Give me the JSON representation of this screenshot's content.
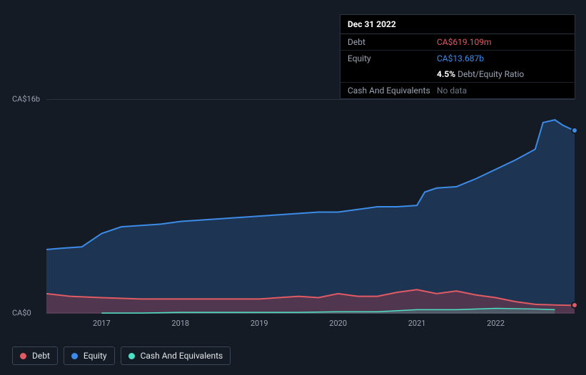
{
  "tooltip": {
    "date": "Dec 31 2022",
    "rows": [
      {
        "label": "Debt",
        "value": "CA$619.109m",
        "color": "red"
      },
      {
        "label": "Equity",
        "value": "CA$13.687b",
        "color": "blue"
      }
    ],
    "ratio": {
      "pct": "4.5%",
      "label": "Debt/Equity Ratio"
    },
    "cash": {
      "label": "Cash And Equivalents",
      "value": "No data"
    }
  },
  "chart": {
    "type": "area",
    "background_color": "#151b24",
    "grid_color": "#2a3340",
    "text_color": "#9aa4b2",
    "label_fontsize": 11,
    "y_axis": {
      "min": 0,
      "max": 16,
      "unit_prefix": "CA$",
      "unit_suffix": "b",
      "ticks": [
        {
          "value": 0,
          "label": "CA$0"
        },
        {
          "value": 16,
          "label": "CA$16b"
        }
      ]
    },
    "x_axis": {
      "min": 2016.3,
      "max": 2023.0,
      "ticks": [
        2017,
        2018,
        2019,
        2020,
        2021,
        2022
      ]
    },
    "series": [
      {
        "name": "Equity",
        "color": "#3c8ce7",
        "fill": "rgba(45,100,170,0.35)",
        "line_width": 2,
        "points": [
          [
            2016.3,
            4.8
          ],
          [
            2016.5,
            4.9
          ],
          [
            2016.75,
            5.0
          ],
          [
            2017.0,
            6.0
          ],
          [
            2017.25,
            6.5
          ],
          [
            2017.5,
            6.6
          ],
          [
            2017.75,
            6.7
          ],
          [
            2018.0,
            6.9
          ],
          [
            2018.25,
            7.0
          ],
          [
            2018.5,
            7.1
          ],
          [
            2018.75,
            7.2
          ],
          [
            2019.0,
            7.3
          ],
          [
            2019.25,
            7.4
          ],
          [
            2019.5,
            7.5
          ],
          [
            2019.75,
            7.6
          ],
          [
            2020.0,
            7.6
          ],
          [
            2020.25,
            7.8
          ],
          [
            2020.5,
            8.0
          ],
          [
            2020.75,
            8.0
          ],
          [
            2021.0,
            8.1
          ],
          [
            2021.1,
            9.1
          ],
          [
            2021.25,
            9.4
          ],
          [
            2021.5,
            9.5
          ],
          [
            2021.75,
            10.1
          ],
          [
            2022.0,
            10.8
          ],
          [
            2022.25,
            11.5
          ],
          [
            2022.5,
            12.3
          ],
          [
            2022.6,
            14.3
          ],
          [
            2022.75,
            14.5
          ],
          [
            2022.85,
            14.1
          ],
          [
            2023.0,
            13.687
          ]
        ]
      },
      {
        "name": "Debt",
        "color": "#e15b64",
        "fill": "rgba(200,60,70,0.3)",
        "line_width": 2,
        "points": [
          [
            2016.3,
            1.5
          ],
          [
            2016.6,
            1.3
          ],
          [
            2017.0,
            1.2
          ],
          [
            2017.5,
            1.1
          ],
          [
            2018.0,
            1.1
          ],
          [
            2018.5,
            1.1
          ],
          [
            2019.0,
            1.1
          ],
          [
            2019.5,
            1.3
          ],
          [
            2019.75,
            1.2
          ],
          [
            2020.0,
            1.5
          ],
          [
            2020.25,
            1.3
          ],
          [
            2020.5,
            1.3
          ],
          [
            2020.75,
            1.6
          ],
          [
            2021.0,
            1.8
          ],
          [
            2021.25,
            1.5
          ],
          [
            2021.5,
            1.7
          ],
          [
            2021.75,
            1.4
          ],
          [
            2022.0,
            1.2
          ],
          [
            2022.25,
            0.9
          ],
          [
            2022.5,
            0.7
          ],
          [
            2022.75,
            0.65
          ],
          [
            2023.0,
            0.619
          ]
        ]
      },
      {
        "name": "Cash And Equivalents",
        "color": "#4de0c4",
        "fill": "rgba(77,224,196,0.2)",
        "line_width": 1.5,
        "points": [
          [
            2017.0,
            0.05
          ],
          [
            2017.5,
            0.05
          ],
          [
            2018.0,
            0.1
          ],
          [
            2018.5,
            0.1
          ],
          [
            2019.0,
            0.1
          ],
          [
            2019.5,
            0.1
          ],
          [
            2020.0,
            0.15
          ],
          [
            2020.5,
            0.15
          ],
          [
            2021.0,
            0.3
          ],
          [
            2021.5,
            0.3
          ],
          [
            2022.0,
            0.4
          ],
          [
            2022.5,
            0.35
          ],
          [
            2022.75,
            0.3
          ]
        ]
      }
    ],
    "end_markers": [
      {
        "series": "Equity",
        "x": 2023.0,
        "y": 13.687,
        "color": "#3c8ce7"
      },
      {
        "series": "Debt",
        "x": 2023.0,
        "y": 0.619,
        "color": "#e15b64"
      }
    ]
  },
  "legend": {
    "items": [
      {
        "label": "Debt",
        "color": "#e15b64"
      },
      {
        "label": "Equity",
        "color": "#3c8ce7"
      },
      {
        "label": "Cash And Equivalents",
        "color": "#4de0c4"
      }
    ]
  }
}
